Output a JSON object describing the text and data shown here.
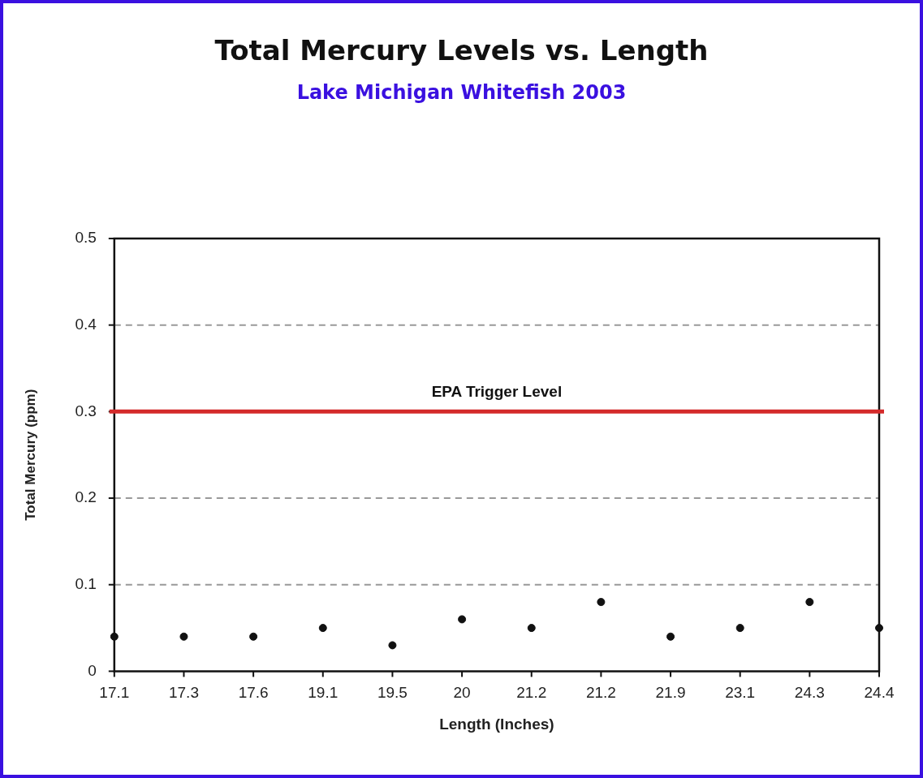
{
  "chart_data": {
    "type": "scatter",
    "title": "Total Mercury Levels vs. Length",
    "subtitle": "Lake Michigan Whitefish 2003",
    "xlabel": "Length (Inches)",
    "ylabel": "Total Mercury (ppm)",
    "categories": [
      "17.1",
      "17.3",
      "17.6",
      "19.1",
      "19.5",
      "20",
      "21.2",
      "21.2",
      "21.9",
      "23.1",
      "24.3",
      "24.4"
    ],
    "values": [
      0.04,
      0.04,
      0.04,
      0.05,
      0.03,
      0.06,
      0.05,
      0.08,
      0.04,
      0.05,
      0.08,
      0.05
    ],
    "color": "#111111",
    "marker": "circle",
    "ylim": [
      0,
      0.5
    ],
    "yticks": [
      0,
      0.1,
      0.2,
      0.3,
      0.4,
      0.5
    ],
    "grid": "y",
    "ref_lines": [
      {
        "axis": "y",
        "value": 0.3,
        "label": "EPA Trigger Level",
        "color": "#d42a2a"
      }
    ]
  }
}
